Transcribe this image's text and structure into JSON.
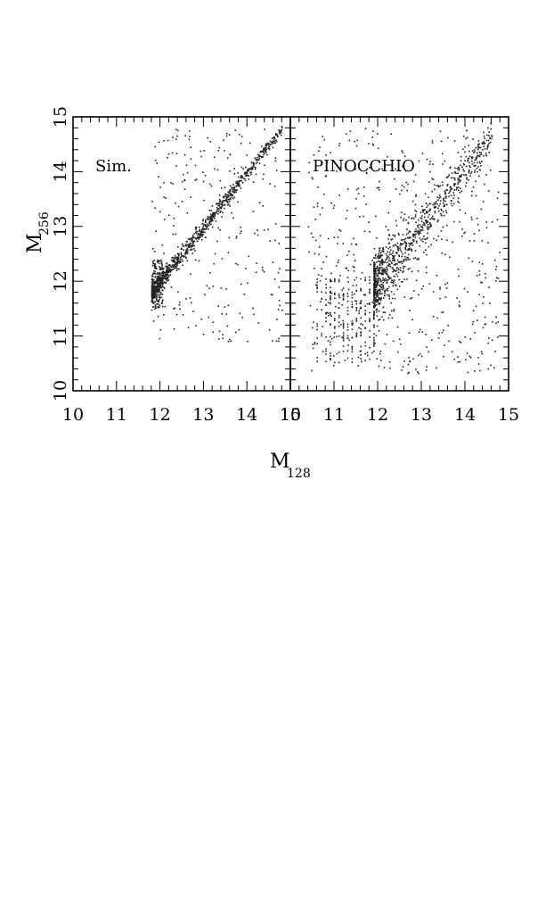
{
  "chart_data": {
    "type": "scatter",
    "xlabel": "M",
    "xlabel_subscript": "128",
    "ylabel": "M",
    "ylabel_subscript": "256",
    "panels": [
      {
        "label": "Sim.",
        "xlim": [
          10,
          15
        ],
        "ylim": [
          10,
          15
        ],
        "x_ticks": [
          "10",
          "11",
          "12",
          "13",
          "14",
          "15"
        ],
        "y_ticks": [
          "10",
          "11",
          "12",
          "13",
          "14",
          "15"
        ],
        "description_points": {
          "diagonal_band": {
            "x_start": 11.8,
            "x_end": 14.8,
            "scatter": 0.09
          },
          "background_region": {
            "x_range": [
              11.8,
              14.8
            ],
            "y_range": [
              10.9,
              14.8
            ]
          }
        }
      },
      {
        "label": "PINOCCHIO",
        "xlim": [
          10,
          15
        ],
        "ylim": [
          10,
          15
        ],
        "x_ticks": [
          "10",
          "11",
          "12",
          "13",
          "14",
          "15"
        ],
        "y_ticks": [
          "10",
          "11",
          "12",
          "13",
          "14",
          "15"
        ],
        "description_points": {
          "diagonal_band": {
            "x_start": 11.9,
            "x_end": 14.6,
            "scatter": 0.3
          },
          "background_region": {
            "x_range": [
              10.4,
              14.8
            ],
            "y_range": [
              10.3,
              14.8
            ]
          }
        }
      }
    ],
    "grid": false,
    "legend": "none"
  }
}
